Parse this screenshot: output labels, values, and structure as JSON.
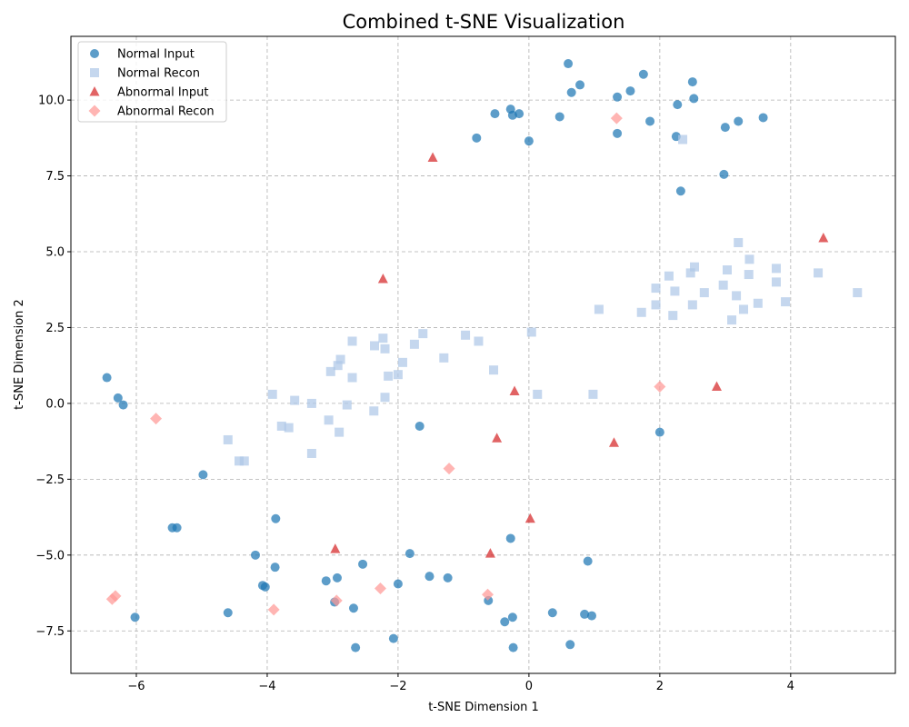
{
  "chart_data": {
    "type": "scatter",
    "title": "Combined t-SNE Visualization",
    "xlabel": "t-SNE Dimension 1",
    "ylabel": "t-SNE Dimension 2",
    "xlim": [
      -7,
      5.6
    ],
    "ylim": [
      -8.9,
      12.1
    ],
    "xticks": [
      -6,
      -4,
      -2,
      0,
      2,
      4
    ],
    "yticks": [
      -7.5,
      -5.0,
      -2.5,
      0.0,
      2.5,
      5.0,
      7.5,
      10.0
    ],
    "ytick_labels": [
      "−7.5",
      "−5.0",
      "−2.5",
      "0.0",
      "2.5",
      "5.0",
      "7.5",
      "10.0"
    ],
    "xtick_labels": [
      "−6",
      "−4",
      "−2",
      "0",
      "2",
      "4"
    ],
    "grid": true,
    "legend_position": "top-left",
    "series": [
      {
        "name": "Normal Input",
        "marker": "circle",
        "color": "#1f77b4",
        "points": [
          [
            0.6,
            11.2
          ],
          [
            1.75,
            10.85
          ],
          [
            0.78,
            10.5
          ],
          [
            2.5,
            10.6
          ],
          [
            0.65,
            10.25
          ],
          [
            1.55,
            10.3
          ],
          [
            1.35,
            10.1
          ],
          [
            2.52,
            10.05
          ],
          [
            -0.28,
            9.7
          ],
          [
            -0.52,
            9.55
          ],
          [
            -0.25,
            9.5
          ],
          [
            -0.15,
            9.55
          ],
          [
            0.47,
            9.45
          ],
          [
            2.27,
            9.85
          ],
          [
            1.85,
            9.3
          ],
          [
            3.2,
            9.3
          ],
          [
            3.58,
            9.42
          ],
          [
            3.0,
            9.1
          ],
          [
            1.35,
            8.9
          ],
          [
            2.25,
            8.8
          ],
          [
            -0.8,
            8.75
          ],
          [
            0.0,
            8.65
          ],
          [
            2.98,
            7.55
          ],
          [
            2.32,
            7.0
          ],
          [
            -6.45,
            0.85
          ],
          [
            -6.28,
            0.18
          ],
          [
            -6.2,
            -0.05
          ],
          [
            -1.67,
            -0.75
          ],
          [
            2.0,
            -0.95
          ],
          [
            -4.98,
            -2.35
          ],
          [
            -3.87,
            -3.8
          ],
          [
            -5.45,
            -4.1
          ],
          [
            -5.38,
            -4.1
          ],
          [
            -0.28,
            -4.45
          ],
          [
            -4.18,
            -5.0
          ],
          [
            -1.82,
            -4.95
          ],
          [
            0.9,
            -5.2
          ],
          [
            -3.88,
            -5.4
          ],
          [
            -2.54,
            -5.3
          ],
          [
            -1.52,
            -5.7
          ],
          [
            -1.24,
            -5.75
          ],
          [
            -3.1,
            -5.85
          ],
          [
            -2.93,
            -5.75
          ],
          [
            -4.07,
            -6.0
          ],
          [
            -4.03,
            -6.05
          ],
          [
            -2.0,
            -5.95
          ],
          [
            -0.62,
            -6.5
          ],
          [
            -2.97,
            -6.55
          ],
          [
            -2.68,
            -6.75
          ],
          [
            -4.6,
            -6.9
          ],
          [
            0.36,
            -6.9
          ],
          [
            0.85,
            -6.95
          ],
          [
            0.96,
            -7.0
          ],
          [
            -6.02,
            -7.05
          ],
          [
            -0.25,
            -7.05
          ],
          [
            -0.37,
            -7.2
          ],
          [
            -2.07,
            -7.75
          ],
          [
            -2.65,
            -8.05
          ],
          [
            -0.24,
            -8.05
          ],
          [
            0.63,
            -7.95
          ]
        ]
      },
      {
        "name": "Normal Recon",
        "marker": "square",
        "color": "#aec7e8",
        "points": [
          [
            2.35,
            8.7
          ],
          [
            3.2,
            5.3
          ],
          [
            3.37,
            4.75
          ],
          [
            2.53,
            4.5
          ],
          [
            3.03,
            4.4
          ],
          [
            2.47,
            4.3
          ],
          [
            3.36,
            4.25
          ],
          [
            3.78,
            4.45
          ],
          [
            4.42,
            4.3
          ],
          [
            2.14,
            4.2
          ],
          [
            3.78,
            4.0
          ],
          [
            1.94,
            3.8
          ],
          [
            2.97,
            3.9
          ],
          [
            2.23,
            3.7
          ],
          [
            2.68,
            3.65
          ],
          [
            3.17,
            3.55
          ],
          [
            5.02,
            3.65
          ],
          [
            1.94,
            3.25
          ],
          [
            2.5,
            3.25
          ],
          [
            3.5,
            3.3
          ],
          [
            3.92,
            3.35
          ],
          [
            1.07,
            3.1
          ],
          [
            3.28,
            3.1
          ],
          [
            1.72,
            3.0
          ],
          [
            2.2,
            2.9
          ],
          [
            3.1,
            2.75
          ],
          [
            0.04,
            2.35
          ],
          [
            -1.62,
            2.3
          ],
          [
            -0.97,
            2.25
          ],
          [
            -2.7,
            2.05
          ],
          [
            -2.23,
            2.15
          ],
          [
            -0.77,
            2.05
          ],
          [
            -1.75,
            1.95
          ],
          [
            -2.36,
            1.9
          ],
          [
            -2.2,
            1.8
          ],
          [
            -1.3,
            1.5
          ],
          [
            -2.88,
            1.45
          ],
          [
            -1.93,
            1.35
          ],
          [
            -2.92,
            1.25
          ],
          [
            -3.03,
            1.05
          ],
          [
            -0.54,
            1.1
          ],
          [
            -2.0,
            0.95
          ],
          [
            -2.15,
            0.9
          ],
          [
            -2.7,
            0.85
          ],
          [
            -3.92,
            0.3
          ],
          [
            0.13,
            0.3
          ],
          [
            0.98,
            0.3
          ],
          [
            -2.2,
            0.2
          ],
          [
            -3.58,
            0.1
          ],
          [
            -3.32,
            0.0
          ],
          [
            -2.78,
            -0.05
          ],
          [
            -2.37,
            -0.25
          ],
          [
            -3.06,
            -0.55
          ],
          [
            -3.78,
            -0.75
          ],
          [
            -3.67,
            -0.8
          ],
          [
            -2.9,
            -0.95
          ],
          [
            -4.6,
            -1.2
          ],
          [
            -4.43,
            -1.9
          ],
          [
            -4.35,
            -1.9
          ],
          [
            -3.32,
            -1.65
          ]
        ]
      },
      {
        "name": "Abnormal Input",
        "marker": "triangle",
        "color": "#d62728",
        "points": [
          [
            -1.47,
            8.1
          ],
          [
            4.5,
            5.45
          ],
          [
            -2.23,
            4.1
          ],
          [
            -0.22,
            0.4
          ],
          [
            2.87,
            0.55
          ],
          [
            -0.49,
            -1.15
          ],
          [
            1.3,
            -1.3
          ],
          [
            0.02,
            -3.8
          ],
          [
            -2.96,
            -4.8
          ],
          [
            -0.59,
            -4.95
          ]
        ]
      },
      {
        "name": "Abnormal Recon",
        "marker": "diamond",
        "color": "#ff9896",
        "points": [
          [
            1.34,
            9.4
          ],
          [
            2.0,
            0.55
          ],
          [
            -5.7,
            -0.5
          ],
          [
            -1.22,
            -2.15
          ],
          [
            -6.32,
            -6.35
          ],
          [
            -6.37,
            -6.45
          ],
          [
            -3.9,
            -6.8
          ],
          [
            -2.27,
            -6.1
          ],
          [
            -2.94,
            -6.5
          ],
          [
            -0.63,
            -6.3
          ]
        ]
      }
    ]
  }
}
